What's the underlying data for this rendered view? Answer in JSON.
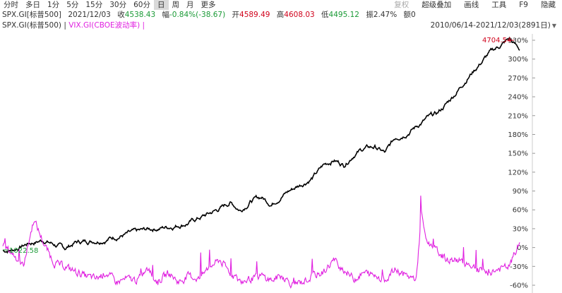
{
  "toolbar": {
    "periods": [
      "分时",
      "多日",
      "1分",
      "5分",
      "15分",
      "30分",
      "60分",
      "日",
      "周",
      "月",
      "更多"
    ],
    "active_period": "日",
    "tools": [
      {
        "label": "复权",
        "disabled": true
      },
      {
        "label": "超级叠加",
        "disabled": false
      },
      {
        "label": "画线",
        "disabled": false
      },
      {
        "label": "工具",
        "disabled": false
      },
      {
        "label": "F9",
        "disabled": false
      },
      {
        "label": "隐藏",
        "disabled": false
      }
    ]
  },
  "quote": {
    "symbol": "SPX.GI[标普500]",
    "date": "2021/12/03",
    "close_label": "收",
    "close": "4538.43",
    "change_label": "幅",
    "change": "-0.84%(-38.67)",
    "open_label": "开",
    "open": "4589.49",
    "high_label": "高",
    "high": "4608.03",
    "low_label": "低",
    "low": "4495.12",
    "amp_label": "振",
    "amp": "2.47%",
    "vol_label": "额",
    "vol": "0"
  },
  "legend": {
    "spx": "SPX.GI(标普500) |",
    "vix": "VIX.GI(CBOE波动率) |"
  },
  "range_text": "2010/06/14-2021/12/03(2891日)",
  "chart_data": {
    "type": "line",
    "y_axis_ticks": [
      "330%",
      "300%",
      "270%",
      "240%",
      "210%",
      "180%",
      "150%",
      "120%",
      "90%",
      "60%",
      "30%",
      "0%",
      "-30%",
      "-60%"
    ],
    "annotations": {
      "max": "4704.54",
      "min": "1022.58"
    },
    "x_range": [
      "2010/06/14",
      "2021/12/03"
    ],
    "series": [
      {
        "name": "SPX.GI(标普500)",
        "color": "#000000",
        "points": [
          [
            0,
            -5
          ],
          [
            0.02,
            -3
          ],
          [
            0.05,
            7
          ],
          [
            0.08,
            12
          ],
          [
            0.1,
            5
          ],
          [
            0.12,
            -2
          ],
          [
            0.14,
            8
          ],
          [
            0.17,
            11
          ],
          [
            0.2,
            14
          ],
          [
            0.23,
            20
          ],
          [
            0.26,
            24
          ],
          [
            0.29,
            30
          ],
          [
            0.32,
            33
          ],
          [
            0.36,
            40
          ],
          [
            0.4,
            54
          ],
          [
            0.42,
            62
          ],
          [
            0.44,
            72
          ],
          [
            0.46,
            60
          ],
          [
            0.48,
            75
          ],
          [
            0.5,
            80
          ],
          [
            0.52,
            70
          ],
          [
            0.54,
            84
          ],
          [
            0.56,
            93
          ],
          [
            0.58,
            102
          ],
          [
            0.6,
            112
          ],
          [
            0.62,
            130
          ],
          [
            0.64,
            140
          ],
          [
            0.66,
            132
          ],
          [
            0.68,
            150
          ],
          [
            0.7,
            158
          ],
          [
            0.72,
            160
          ],
          [
            0.74,
            150
          ],
          [
            0.76,
            175
          ],
          [
            0.78,
            183
          ],
          [
            0.8,
            193
          ],
          [
            0.82,
            205
          ],
          [
            0.84,
            212
          ],
          [
            0.86,
            230
          ],
          [
            0.88,
            250
          ],
          [
            0.9,
            272
          ],
          [
            0.92,
            290
          ],
          [
            0.94,
            308
          ],
          [
            0.96,
            320
          ],
          [
            0.98,
            332
          ],
          [
            1,
            315
          ]
        ]
      },
      {
        "name": "VIX.GI(CBOE波动率)",
        "color": "#e020e0",
        "points": [
          [
            0,
            3
          ],
          [
            0.02,
            -10
          ],
          [
            0.04,
            -30
          ],
          [
            0.06,
            45
          ],
          [
            0.08,
            5
          ],
          [
            0.1,
            -25
          ],
          [
            0.12,
            -30
          ],
          [
            0.14,
            -38
          ],
          [
            0.16,
            -45
          ],
          [
            0.18,
            -50
          ],
          [
            0.2,
            -40
          ],
          [
            0.22,
            -55
          ],
          [
            0.24,
            -50
          ],
          [
            0.26,
            -52
          ],
          [
            0.28,
            -35
          ],
          [
            0.3,
            -55
          ],
          [
            0.32,
            -40
          ],
          [
            0.34,
            -55
          ],
          [
            0.36,
            -45
          ],
          [
            0.38,
            -50
          ],
          [
            0.4,
            -30
          ],
          [
            0.42,
            -20
          ],
          [
            0.44,
            -40
          ],
          [
            0.46,
            -55
          ],
          [
            0.48,
            -50
          ],
          [
            0.5,
            -45
          ],
          [
            0.52,
            -52
          ],
          [
            0.54,
            -45
          ],
          [
            0.56,
            -58
          ],
          [
            0.58,
            -55
          ],
          [
            0.6,
            -45
          ],
          [
            0.62,
            -40
          ],
          [
            0.64,
            -20
          ],
          [
            0.66,
            -35
          ],
          [
            0.68,
            -50
          ],
          [
            0.7,
            -40
          ],
          [
            0.72,
            -45
          ],
          [
            0.74,
            -50
          ],
          [
            0.76,
            -35
          ],
          [
            0.78,
            -45
          ],
          [
            0.8,
            -50
          ],
          [
            0.81,
            55
          ],
          [
            0.82,
            10
          ],
          [
            0.84,
            -5
          ],
          [
            0.86,
            -20
          ],
          [
            0.88,
            -20
          ],
          [
            0.9,
            -25
          ],
          [
            0.92,
            -35
          ],
          [
            0.94,
            -40
          ],
          [
            0.96,
            -35
          ],
          [
            0.98,
            -30
          ],
          [
            1,
            8
          ]
        ]
      }
    ]
  }
}
